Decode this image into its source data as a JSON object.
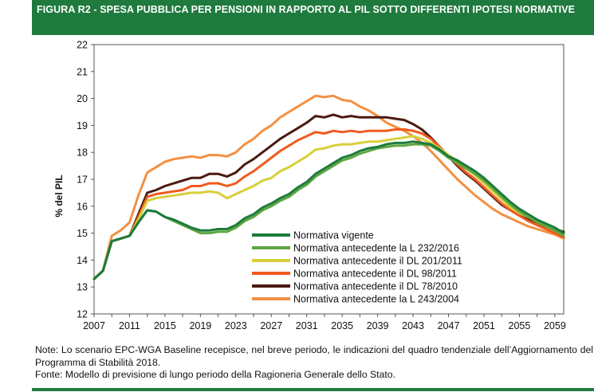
{
  "header": {
    "title": "FIGURA R2 - SPESA PUBBLICA PER PENSIONI IN RAPPORTO AL PIL SOTTO DIFFERENTI IPOTESI NORMATIVE"
  },
  "notes": {
    "note": "Note: Lo scenario EPC-WGA Baseline recepisce, nel breve periodo, le indicazioni del quadro tendenziale dell’Aggiornamento del Programma di Stabilità 2018.",
    "source": "Fonte: Modello di previsione di lungo periodo della Ragioneria Generale dello Stato."
  },
  "chart_data": {
    "type": "line",
    "ylabel": "% del PIL",
    "xlabel": "",
    "ylim": [
      12,
      22
    ],
    "xlim": [
      2007,
      2060
    ],
    "yticks": [
      12,
      13,
      14,
      15,
      16,
      17,
      18,
      19,
      20,
      21,
      22
    ],
    "xticks": [
      2007,
      2011,
      2015,
      2019,
      2023,
      2027,
      2031,
      2035,
      2039,
      2043,
      2047,
      2051,
      2055,
      2059
    ],
    "grid": false,
    "legend_position": "bottom-center",
    "x": [
      2007,
      2008,
      2009,
      2010,
      2011,
      2012,
      2013,
      2014,
      2015,
      2016,
      2017,
      2018,
      2019,
      2020,
      2021,
      2022,
      2023,
      2024,
      2025,
      2026,
      2027,
      2028,
      2029,
      2030,
      2031,
      2032,
      2033,
      2034,
      2035,
      2036,
      2037,
      2038,
      2039,
      2040,
      2041,
      2042,
      2043,
      2044,
      2045,
      2046,
      2047,
      2048,
      2049,
      2050,
      2051,
      2052,
      2053,
      2054,
      2055,
      2056,
      2057,
      2058,
      2059,
      2060
    ],
    "series": [
      {
        "name": "Normativa vigente",
        "color": "#1e7b3c",
        "values": [
          13.3,
          13.6,
          14.7,
          14.8,
          14.9,
          15.4,
          15.85,
          15.8,
          15.6,
          15.5,
          15.35,
          15.2,
          15.1,
          15.1,
          15.15,
          15.15,
          15.3,
          15.55,
          15.7,
          15.95,
          16.1,
          16.3,
          16.45,
          16.7,
          16.9,
          17.2,
          17.4,
          17.6,
          17.8,
          17.9,
          18.05,
          18.15,
          18.2,
          18.3,
          18.35,
          18.35,
          18.4,
          18.35,
          18.3,
          18.1,
          17.85,
          17.7,
          17.5,
          17.3,
          17.05,
          16.75,
          16.45,
          16.15,
          15.9,
          15.7,
          15.5,
          15.35,
          15.2,
          15.0
        ]
      },
      {
        "name": "Normativa antecedente la  L 232/2016",
        "color": "#5fa642",
        "values": [
          13.3,
          13.6,
          14.7,
          14.8,
          14.9,
          15.4,
          15.85,
          15.8,
          15.6,
          15.45,
          15.3,
          15.15,
          15.0,
          15.0,
          15.05,
          15.05,
          15.2,
          15.45,
          15.6,
          15.85,
          16.0,
          16.2,
          16.35,
          16.6,
          16.8,
          17.1,
          17.3,
          17.5,
          17.7,
          17.8,
          17.95,
          18.05,
          18.15,
          18.2,
          18.25,
          18.25,
          18.3,
          18.3,
          18.25,
          18.05,
          17.8,
          17.6,
          17.4,
          17.2,
          16.95,
          16.65,
          16.35,
          16.05,
          15.8,
          15.6,
          15.4,
          15.25,
          15.1,
          14.9
        ]
      },
      {
        "name": "Normativa antecedente il DL 201/2011",
        "color": "#d8cf3b",
        "values": [
          13.3,
          13.6,
          14.7,
          14.8,
          14.9,
          15.5,
          16.2,
          16.3,
          16.35,
          16.4,
          16.45,
          16.5,
          16.5,
          16.55,
          16.5,
          16.3,
          16.45,
          16.6,
          16.75,
          16.95,
          17.05,
          17.3,
          17.45,
          17.65,
          17.85,
          18.1,
          18.15,
          18.25,
          18.3,
          18.3,
          18.35,
          18.4,
          18.4,
          18.45,
          18.5,
          18.55,
          18.6,
          18.5,
          18.35,
          18.15,
          17.9,
          17.65,
          17.4,
          17.15,
          16.85,
          16.55,
          16.25,
          15.95,
          15.75,
          15.6,
          15.45,
          15.3,
          15.2,
          15.0
        ]
      },
      {
        "name": "Normativa antecedente il DL 98/2011",
        "color": "#f05a1e",
        "values": [
          13.3,
          13.6,
          14.7,
          14.8,
          14.9,
          15.6,
          16.35,
          16.45,
          16.5,
          16.55,
          16.6,
          16.75,
          16.75,
          16.85,
          16.85,
          16.75,
          16.85,
          17.1,
          17.3,
          17.55,
          17.8,
          18.05,
          18.25,
          18.45,
          18.6,
          18.75,
          18.7,
          18.8,
          18.75,
          18.8,
          18.75,
          18.8,
          18.8,
          18.8,
          18.85,
          18.85,
          18.8,
          18.7,
          18.5,
          18.2,
          17.85,
          17.55,
          17.25,
          17.0,
          16.7,
          16.4,
          16.1,
          15.85,
          15.65,
          15.45,
          15.3,
          15.15,
          15.0,
          14.85
        ]
      },
      {
        "name": "Normativa antecedente il DL 78/2010",
        "color": "#4a1a10",
        "values": [
          13.3,
          13.6,
          14.7,
          14.8,
          14.9,
          15.7,
          16.5,
          16.6,
          16.75,
          16.85,
          16.95,
          17.05,
          17.05,
          17.2,
          17.2,
          17.1,
          17.25,
          17.55,
          17.75,
          18.0,
          18.25,
          18.5,
          18.7,
          18.9,
          19.1,
          19.35,
          19.3,
          19.4,
          19.3,
          19.35,
          19.3,
          19.3,
          19.3,
          19.3,
          19.25,
          19.2,
          19.05,
          18.85,
          18.55,
          18.2,
          17.85,
          17.5,
          17.2,
          16.95,
          16.65,
          16.35,
          16.05,
          15.85,
          15.65,
          15.5,
          15.35,
          15.25,
          15.15,
          15.05
        ]
      },
      {
        "name": "Normativa antecedente la L 243/2004",
        "color": "#f39042",
        "values": [
          13.3,
          13.6,
          14.9,
          15.1,
          15.4,
          16.4,
          17.25,
          17.45,
          17.65,
          17.75,
          17.8,
          17.85,
          17.8,
          17.9,
          17.9,
          17.85,
          18.0,
          18.3,
          18.5,
          18.8,
          19.0,
          19.3,
          19.5,
          19.7,
          19.9,
          20.1,
          20.05,
          20.1,
          19.95,
          19.9,
          19.7,
          19.55,
          19.35,
          19.1,
          18.95,
          18.8,
          18.6,
          18.35,
          18.05,
          17.7,
          17.35,
          17.0,
          16.7,
          16.4,
          16.15,
          15.9,
          15.7,
          15.55,
          15.4,
          15.25,
          15.15,
          15.05,
          14.95,
          14.8
        ]
      }
    ]
  }
}
